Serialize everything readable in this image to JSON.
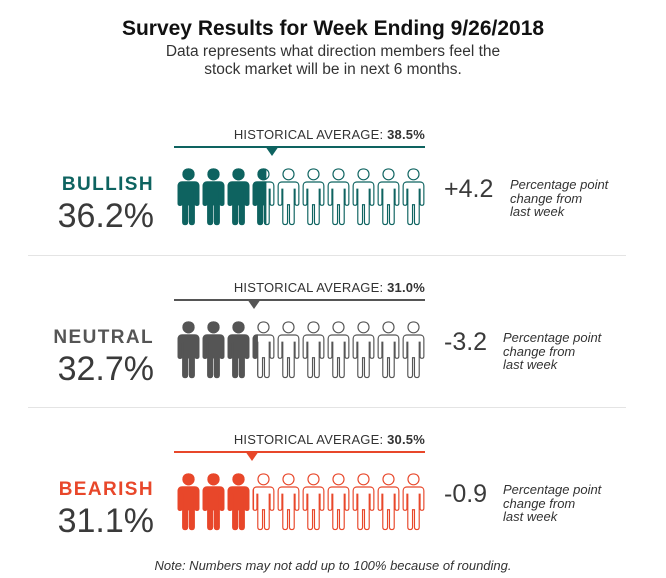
{
  "title": "Survey Results for Week Ending 9/26/2018",
  "subtitle_line1": "Data represents what direction members feel the",
  "subtitle_line2": "stock market will be in next 6 months.",
  "note": "Note: Numbers may not add up to 100% because of rounding.",
  "hist_prefix": "HISTORICAL AVERAGE:",
  "change_note": [
    "Percentage point",
    "change from",
    "last week"
  ],
  "chart_data": {
    "type": "table",
    "title": "Survey Results for Week Ending 9/26/2018",
    "subtitle": "Data represents what direction members feel the stock market will be in next 6 months.",
    "icon_count": 10,
    "icon_unit_percent": 10,
    "rows": [
      {
        "label": "BULLISH",
        "value": 36.2,
        "value_text": "36.2%",
        "historical_average": 38.5,
        "historical_text": "38.5%",
        "change": 4.2,
        "change_text": "+4.2",
        "color": "#0e6360"
      },
      {
        "label": "NEUTRAL",
        "value": 32.7,
        "value_text": "32.7%",
        "historical_average": 31.0,
        "historical_text": "31.0%",
        "change": -3.2,
        "change_text": "-3.2",
        "color": "#555555"
      },
      {
        "label": "BEARISH",
        "value": 31.1,
        "value_text": "31.1%",
        "historical_average": 30.5,
        "historical_text": "30.5%",
        "change": -0.9,
        "change_text": "-0.9",
        "color": "#e8472a"
      }
    ]
  }
}
